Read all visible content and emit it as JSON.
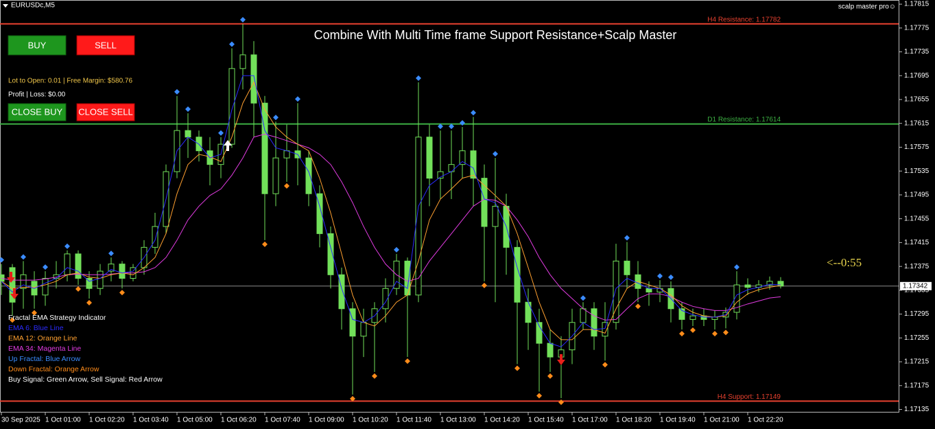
{
  "header": {
    "symbol": "EURUSDc,M5",
    "indicator": "scalp master pro☺"
  },
  "panel": {
    "buy": "BUY",
    "sell": "SELL",
    "close_buy": "CLOSE BUY",
    "close_sell": "CLOSE SELL",
    "lot_info": "Lot to Open: 0.01 | Free Margin: $580.76",
    "profit_info": "Profit | Loss: $0.00"
  },
  "legend": {
    "title": "Fractal EMA Strategy Indicator",
    "items": [
      {
        "text": "EMA 6: Blue Line",
        "color": "#2b2bff"
      },
      {
        "text": "EMA 12: Orange Line",
        "color": "#ffa030"
      },
      {
        "text": "EMA 34: Magenta Line",
        "color": "#e23ce2"
      },
      {
        "text": "Up Fractal: Blue Arrow",
        "color": "#3b8cff"
      },
      {
        "text": "Down Fractal: Orange Arrow",
        "color": "#ff8c1a"
      },
      {
        "text": "Buy Signal: Green Arrow, Sell Signal: Red Arrow",
        "color": "#ffffff"
      }
    ]
  },
  "timer": "<--0:55",
  "chart_data": {
    "type": "candlestick",
    "title": "Combine With Multi Time frame Support Resistance+Scalp Master",
    "categories": [
      "30 Sep 2025",
      null,
      null,
      null,
      "1 Oct 01:00",
      null,
      null,
      null,
      "1 Oct 02:20",
      null,
      null,
      null,
      "1 Oct 03:40",
      null,
      null,
      null,
      "1 Oct 05:00",
      null,
      null,
      null,
      "1 Oct 06:20",
      null,
      null,
      null,
      "1 Oct 07:40",
      null,
      null,
      null,
      "1 Oct 09:00",
      null,
      null,
      null,
      "1 Oct 10:20",
      null,
      null,
      null,
      "1 Oct 11:40",
      null,
      null,
      null,
      "1 Oct 13:00",
      null,
      null,
      null,
      "1 Oct 14:20",
      null,
      null,
      null,
      "1 Oct 15:40",
      null,
      null,
      null,
      "1 Oct 17:00",
      null,
      null,
      null,
      "1 Oct 18:20",
      null,
      null,
      null,
      "1 Oct 19:40",
      null,
      null,
      null,
      "1 Oct 21:00",
      null,
      null,
      null,
      "1 Oct 22:20",
      null,
      null,
      null
    ],
    "candle_color": "#72e05a",
    "candles": [
      [
        1.17361,
        1.17379,
        1.17327,
        1.1735
      ],
      [
        1.17373,
        1.17379,
        1.17292,
        1.17315
      ],
      [
        1.17338,
        1.17384,
        1.17304,
        1.17361
      ],
      [
        1.1735,
        1.17367,
        1.17304,
        1.17327
      ],
      [
        1.17327,
        1.17367,
        1.17309,
        1.17355
      ],
      [
        1.17355,
        1.17384,
        1.17338,
        1.17361
      ],
      [
        1.17361,
        1.17402,
        1.1735,
        1.17396
      ],
      [
        1.17396,
        1.17402,
        1.17344,
        1.17355
      ],
      [
        1.17355,
        1.17367,
        1.17321,
        1.17338
      ],
      [
        1.17338,
        1.17379,
        1.17327,
        1.17367
      ],
      [
        1.17367,
        1.1739,
        1.1735,
        1.17379
      ],
      [
        1.17379,
        1.17384,
        1.17338,
        1.17355
      ],
      [
        1.17355,
        1.17379,
        1.1735,
        1.17373
      ],
      [
        1.17373,
        1.17419,
        1.17361,
        1.17407
      ],
      [
        1.17407,
        1.17465,
        1.17396,
        1.17442
      ],
      [
        1.17442,
        1.17546,
        1.1743,
        1.17534
      ],
      [
        1.17534,
        1.17661,
        1.17523,
        1.17603
      ],
      [
        1.17603,
        1.17632,
        1.17557,
        1.17592
      ],
      [
        1.17592,
        1.17603,
        1.17551,
        1.17569
      ],
      [
        1.17569,
        1.17592,
        1.17511,
        1.17546
      ],
      [
        1.17546,
        1.17592,
        1.17523,
        1.1758
      ],
      [
        1.1758,
        1.17741,
        1.17574,
        1.17707
      ],
      [
        1.17707,
        1.17782,
        1.17672,
        1.1773
      ],
      [
        1.1773,
        1.17753,
        1.17592,
        1.17649
      ],
      [
        1.17649,
        1.17661,
        1.17419,
        1.17497
      ],
      [
        1.17497,
        1.17618,
        1.17476,
        1.17557
      ],
      [
        1.17557,
        1.17613,
        1.17517,
        1.17569
      ],
      [
        1.17569,
        1.17649,
        1.17511,
        1.17557
      ],
      [
        1.17557,
        1.17569,
        1.17476,
        1.17497
      ],
      [
        1.17497,
        1.17511,
        1.17407,
        1.1743
      ],
      [
        1.1743,
        1.17442,
        1.17338,
        1.17361
      ],
      [
        1.17361,
        1.17373,
        1.17269,
        1.17304
      ],
      [
        1.17304,
        1.17315,
        1.1716,
        1.17258
      ],
      [
        1.17258,
        1.17304,
        1.17223,
        1.17281
      ],
      [
        1.17281,
        1.17315,
        1.17198,
        1.17304
      ],
      [
        1.17304,
        1.17355,
        1.17281,
        1.17338
      ],
      [
        1.17338,
        1.17396,
        1.17327,
        1.17384
      ],
      [
        1.17384,
        1.1739,
        1.17223,
        1.17327
      ],
      [
        1.17327,
        1.17684,
        1.17315,
        1.17592
      ],
      [
        1.17592,
        1.17613,
        1.17476,
        1.17523
      ],
      [
        1.17523,
        1.17603,
        1.17488,
        1.17534
      ],
      [
        1.17534,
        1.17603,
        1.17488,
        1.17546
      ],
      [
        1.17546,
        1.17609,
        1.17523,
        1.17569
      ],
      [
        1.17569,
        1.17626,
        1.17476,
        1.17523
      ],
      [
        1.17523,
        1.17546,
        1.1735,
        1.17442
      ],
      [
        1.17442,
        1.17557,
        1.17315,
        1.17476
      ],
      [
        1.17476,
        1.17497,
        1.17361,
        1.17407
      ],
      [
        1.17407,
        1.17419,
        1.17211,
        1.17315
      ],
      [
        1.17315,
        1.17338,
        1.17235,
        1.17281
      ],
      [
        1.17281,
        1.17304,
        1.17165,
        1.17246
      ],
      [
        1.17246,
        1.17269,
        1.17198,
        1.17223
      ],
      [
        1.17223,
        1.17258,
        1.17154,
        1.17235
      ],
      [
        1.17235,
        1.17304,
        1.17211,
        1.17281
      ],
      [
        1.17281,
        1.17315,
        1.17269,
        1.17304
      ],
      [
        1.17304,
        1.17315,
        1.17235,
        1.17258
      ],
      [
        1.17258,
        1.17315,
        1.17217,
        1.17281
      ],
      [
        1.17281,
        1.17413,
        1.17269,
        1.17384
      ],
      [
        1.17384,
        1.17416,
        1.17338,
        1.17361
      ],
      [
        1.17361,
        1.17384,
        1.17315,
        1.17338
      ],
      [
        1.17338,
        1.1735,
        1.17309,
        1.17332
      ],
      [
        1.17332,
        1.17352,
        1.17315,
        1.17338
      ],
      [
        1.17338,
        1.1735,
        1.17281,
        1.17304
      ],
      [
        1.17304,
        1.17315,
        1.17269,
        1.17286
      ],
      [
        1.17286,
        1.17304,
        1.17275,
        1.17292
      ],
      [
        1.17292,
        1.17304,
        1.17275,
        1.17286
      ],
      [
        1.17286,
        1.17301,
        1.17269,
        1.1729
      ],
      [
        1.1729,
        1.17306,
        1.17271,
        1.17298
      ],
      [
        1.17298,
        1.17367,
        1.17286,
        1.17344
      ],
      [
        1.17344,
        1.17355,
        1.17327,
        1.1734
      ],
      [
        1.1734,
        1.17352,
        1.17332,
        1.17344
      ],
      [
        1.17344,
        1.17358,
        1.17336,
        1.1735
      ],
      [
        1.1735,
        1.17357,
        1.17338,
        1.17342
      ]
    ],
    "emas": [
      {
        "color": "#e23ce2",
        "values": [
          1.17355,
          1.17352,
          1.17352,
          1.17352,
          1.17354,
          1.17357,
          1.17361,
          1.17362,
          1.17361,
          1.17361,
          1.17362,
          1.17364,
          1.17364,
          1.17366,
          1.17373,
          1.1739,
          1.17419,
          1.17453,
          1.17476,
          1.17494,
          1.17505,
          1.17528,
          1.17557,
          1.17592,
          1.17597,
          1.17592,
          1.17586,
          1.1758,
          1.17574,
          1.17563,
          1.17546,
          1.17517,
          1.17482,
          1.17442,
          1.17407,
          1.17379,
          1.17361,
          1.1735,
          1.17355,
          1.17384,
          1.17407,
          1.1743,
          1.17453,
          1.17476,
          1.17488,
          1.17486,
          1.17476,
          1.17453,
          1.17425,
          1.1739,
          1.17361,
          1.17338,
          1.17321,
          1.17304,
          1.17292,
          1.17285,
          1.17286,
          1.17304,
          1.17321,
          1.17329,
          1.17329,
          1.17324,
          1.17315,
          1.17308,
          1.17304,
          1.17301,
          1.17301,
          1.17306,
          1.17312,
          1.17317,
          1.17322,
          1.17324
        ]
      },
      {
        "color": "#ffa030",
        "values": [
          1.1735,
          1.17338,
          1.1734,
          1.1734,
          1.17344,
          1.1735,
          1.17361,
          1.17364,
          1.17357,
          1.17355,
          1.17361,
          1.17364,
          1.17361,
          1.17373,
          1.1739,
          1.1743,
          1.17497,
          1.17546,
          1.17563,
          1.17559,
          1.17551,
          1.17592,
          1.17649,
          1.17684,
          1.17638,
          1.17609,
          1.17592,
          1.1758,
          1.17569,
          1.17523,
          1.17465,
          1.17396,
          1.17327,
          1.17281,
          1.17275,
          1.17292,
          1.17315,
          1.17327,
          1.17384,
          1.17453,
          1.17488,
          1.17505,
          1.17523,
          1.17528,
          1.17511,
          1.17494,
          1.17476,
          1.1743,
          1.17373,
          1.17315,
          1.17269,
          1.17252,
          1.17252,
          1.17269,
          1.17269,
          1.17263,
          1.17304,
          1.17338,
          1.1735,
          1.17344,
          1.17338,
          1.17327,
          1.17309,
          1.17298,
          1.17292,
          1.1729,
          1.17292,
          1.17315,
          1.17329,
          1.17336,
          1.1734,
          1.17343
        ]
      },
      {
        "color": "#2b2bff",
        "values": [
          1.1735,
          1.17332,
          1.17344,
          1.17338,
          1.17347,
          1.17355,
          1.17373,
          1.17367,
          1.1735,
          1.17355,
          1.1737,
          1.17364,
          1.17367,
          1.1739,
          1.17419,
          1.17488,
          1.17569,
          1.17592,
          1.1758,
          1.17557,
          1.17563,
          1.17638,
          1.17695,
          1.17695,
          1.17603,
          1.17574,
          1.17569,
          1.17563,
          1.17534,
          1.17476,
          1.17407,
          1.17338,
          1.17286,
          1.17281,
          1.17292,
          1.17315,
          1.1735,
          1.17338,
          1.17476,
          1.17511,
          1.17525,
          1.17534,
          1.17551,
          1.1754,
          1.17488,
          1.17482,
          1.17442,
          1.17373,
          1.17315,
          1.17275,
          1.17246,
          1.1724,
          1.17258,
          1.17281,
          1.17269,
          1.17271,
          1.17338,
          1.17355,
          1.17347,
          1.17338,
          1.17338,
          1.17321,
          1.17301,
          1.17294,
          1.1729,
          1.1729,
          1.17294,
          1.17327,
          1.17336,
          1.1734,
          1.17345,
          1.17344
        ]
      }
    ],
    "fractals": [
      {
        "kind": "up",
        "color": "#3b8cff",
        "values": [
          1.17379,
          null,
          1.17384,
          null,
          1.17367,
          null,
          1.17402,
          null,
          null,
          null,
          1.1739,
          null,
          null,
          null,
          null,
          null,
          1.17661,
          1.17632,
          null,
          null,
          1.17592,
          1.17741,
          1.17782,
          null,
          null,
          1.17618,
          null,
          1.17649,
          null,
          null,
          null,
          null,
          null,
          null,
          null,
          null,
          1.17396,
          null,
          1.17684,
          null,
          1.17603,
          1.17603,
          1.17609,
          1.17626,
          null,
          1.17557,
          null,
          null,
          null,
          null,
          null,
          null,
          null,
          1.17315,
          null,
          null,
          null,
          1.17416,
          null,
          null,
          1.17352,
          1.1735,
          null,
          null,
          null,
          null,
          null,
          1.17367,
          null,
          null,
          null,
          null
        ]
      },
      {
        "kind": "down",
        "color": "#ff8c1a",
        "values": [
          null,
          1.17292,
          null,
          1.17304,
          null,
          null,
          null,
          1.17344,
          1.17321,
          null,
          null,
          1.17338,
          null,
          null,
          null,
          null,
          null,
          null,
          null,
          null,
          null,
          null,
          null,
          null,
          1.17419,
          null,
          1.17517,
          null,
          null,
          null,
          null,
          null,
          1.1716,
          null,
          1.17198,
          null,
          null,
          1.17223,
          null,
          null,
          null,
          null,
          null,
          null,
          1.1735,
          null,
          null,
          1.17211,
          null,
          1.17165,
          1.17198,
          1.17154,
          null,
          null,
          null,
          1.17217,
          null,
          null,
          1.17315,
          null,
          null,
          null,
          1.17269,
          1.17275,
          null,
          1.17269,
          1.17271,
          null,
          null,
          null,
          null,
          null
        ]
      }
    ],
    "levels": [
      {
        "label": "H4 Resistance: 1.17782",
        "value": 1.17782,
        "color": "#e8412f"
      },
      {
        "label": "D1 Resistance: 1.17614",
        "value": 1.17614,
        "color": "#3cb043"
      },
      {
        "label": "H4 Support: 1.17149",
        "value": 1.17149,
        "color": "#e8412f"
      }
    ],
    "current_price": 1.17342,
    "ylim": [
      1.17131,
      1.17822
    ],
    "yticks": [
      1.17815,
      1.17775,
      1.17735,
      1.17695,
      1.17655,
      1.17615,
      1.17575,
      1.17535,
      1.17495,
      1.17455,
      1.17415,
      1.17375,
      1.17335,
      1.17295,
      1.17255,
      1.17215,
      1.17175,
      1.17135
    ],
    "grid": false
  }
}
